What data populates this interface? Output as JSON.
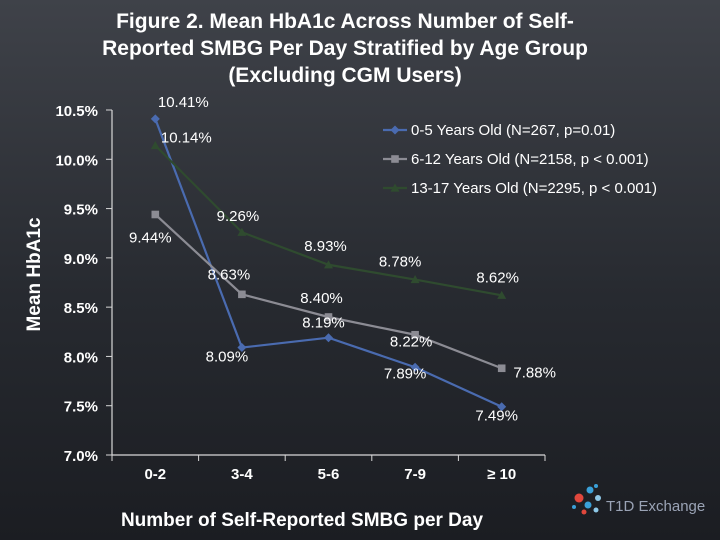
{
  "chart_data": {
    "type": "line",
    "title_lines": [
      "Figure 2. Mean HbA1c Across Number of Self-",
      "Reported SMBG Per Day Stratified by Age Group",
      "(Excluding CGM Users)"
    ],
    "xlabel": "Number of Self-Reported SMBG per Day",
    "ylabel": "Mean HbA1c",
    "categories": [
      "0-2",
      "3-4",
      "5-6",
      "7-9",
      "≥ 10"
    ],
    "ylim": [
      7.0,
      10.5
    ],
    "yticks": [
      {
        "value": 10.5,
        "label": "10.5%"
      },
      {
        "value": 10.0,
        "label": "10.0%"
      },
      {
        "value": 9.5,
        "label": "9.5%"
      },
      {
        "value": 9.0,
        "label": "9.0%"
      },
      {
        "value": 8.5,
        "label": "8.5%"
      },
      {
        "value": 8.0,
        "label": "8.0%"
      },
      {
        "value": 7.5,
        "label": "7.5%"
      },
      {
        "value": 7.0,
        "label": "7.0%"
      }
    ],
    "legend_position": "top-right",
    "series": [
      {
        "name": "0-5 Years Old (N=267, p=0.01)",
        "color": "#4a6bb0",
        "marker": "diamond",
        "values": [
          10.41,
          8.09,
          8.19,
          7.89,
          7.49
        ],
        "labels": [
          "10.41%",
          "8.09%",
          "8.19%",
          "7.89%",
          "7.49%"
        ]
      },
      {
        "name": "6-12 Years Old (N=2158, p < 0.001)",
        "color": "#8c8c94",
        "marker": "square",
        "values": [
          9.44,
          8.63,
          8.4,
          8.22,
          7.88
        ],
        "labels": [
          "9.44%",
          "8.63%",
          "8.40%",
          "8.22%",
          "7.88%"
        ]
      },
      {
        "name": "13-17 Years Old (N=2295, p < 0.001)",
        "color": "#2f4b2f",
        "marker": "triangle",
        "values": [
          10.14,
          9.26,
          8.93,
          8.78,
          8.62
        ],
        "labels": [
          "10.14%",
          "9.26%",
          "8.93%",
          "8.78%",
          "8.62%"
        ]
      }
    ]
  },
  "logo": {
    "text": "T1D Exchange"
  }
}
